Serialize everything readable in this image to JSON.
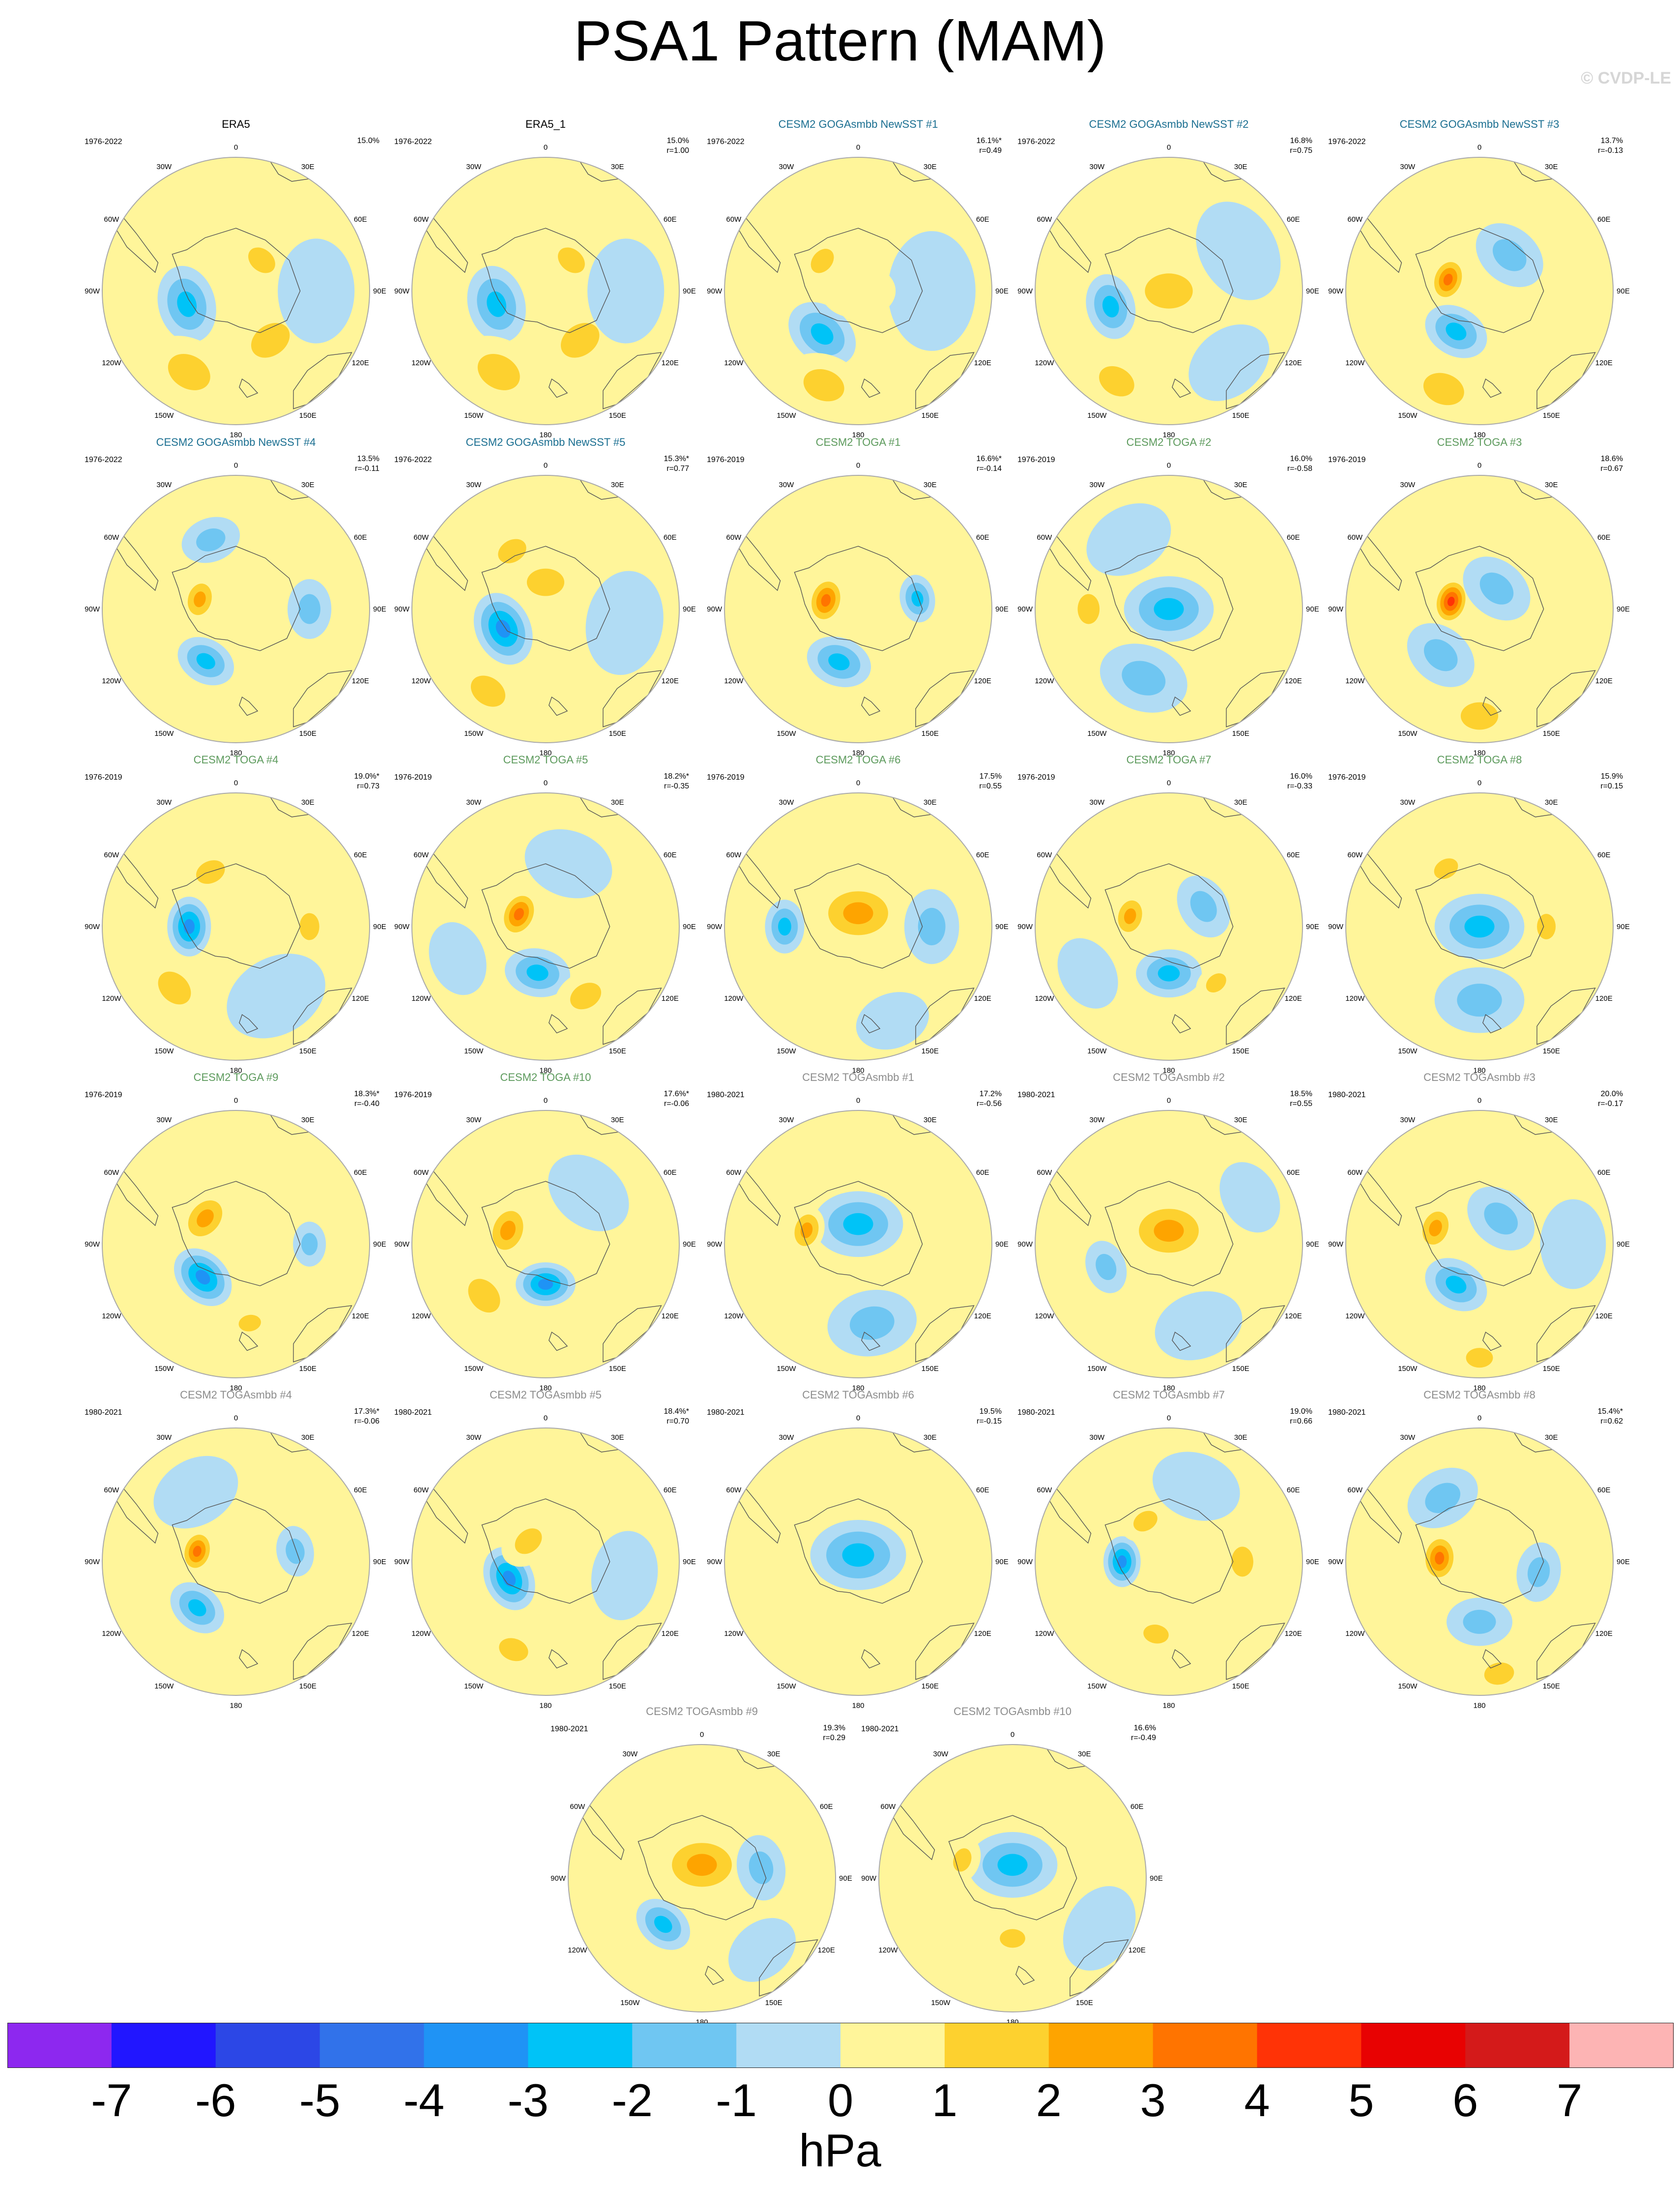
{
  "title": "PSA1 Pattern (MAM)",
  "credit": "© CVDP-LE",
  "meridian_labels": [
    "0",
    "30E",
    "60E",
    "90E",
    "120E",
    "150E",
    "180",
    "150W",
    "120W",
    "90W",
    "60W",
    "30W"
  ],
  "colors": {
    "title_obs": "#000000",
    "title_goga": "#1b6f91",
    "title_toga": "#5c9a5c",
    "title_togasmbb": "#8c8c8c",
    "coast": "#555555",
    "rim": "#aaaaaa"
  },
  "palette": [
    "#8d28ef",
    "#2116ff",
    "#2c47e6",
    "#3172ea",
    "#1f93f5",
    "#00c3f7",
    "#6fc6f2",
    "#b1dcf4",
    "#fff59a",
    "#fdd12f",
    "#fea400",
    "#ff7400",
    "#ff3306",
    "#e80202",
    "#d41a1a",
    "#fdb4b4"
  ],
  "colorbar": {
    "ticks": [
      "-7",
      "-6",
      "-5",
      "-4",
      "-3",
      "-2",
      "-1",
      "0",
      "1",
      "2",
      "3",
      "4",
      "5",
      "6",
      "7"
    ],
    "unit": "hPa"
  },
  "panels": [
    {
      "title": "ERA5",
      "group": "obs",
      "years": "1976-2022",
      "pct": "15.0%",
      "corr": "",
      "features": [
        {
          "lon": 255,
          "r": 0.38,
          "v": -3,
          "s": 0.26
        },
        {
          "lon": 145,
          "r": 0.45,
          "v": 1.5,
          "s": 0.28
        },
        {
          "lon": 40,
          "r": 0.3,
          "v": 1.2,
          "s": 0.2
        },
        {
          "lon": 210,
          "r": 0.7,
          "v": 1.3,
          "s": 0.3
        },
        {
          "lon": 90,
          "r": 0.6,
          "v": -0.9,
          "s": 0.35
        }
      ]
    },
    {
      "title": "ERA5_1",
      "group": "obs",
      "years": "1976-2022",
      "pct": "15.0%",
      "corr": "r=1.00",
      "features": [
        {
          "lon": 255,
          "r": 0.38,
          "v": -3,
          "s": 0.26
        },
        {
          "lon": 145,
          "r": 0.45,
          "v": 1.5,
          "s": 0.28
        },
        {
          "lon": 40,
          "r": 0.3,
          "v": 1.2,
          "s": 0.2
        },
        {
          "lon": 210,
          "r": 0.7,
          "v": 1.3,
          "s": 0.3
        },
        {
          "lon": 90,
          "r": 0.6,
          "v": -0.9,
          "s": 0.35
        }
      ]
    },
    {
      "title": "CESM2 GOGAsmbb NewSST #1",
      "group": "goga",
      "years": "1976-2022",
      "pct": "16.1%*",
      "corr": "r=0.49",
      "features": [
        {
          "lon": 220,
          "r": 0.42,
          "v": -3,
          "s": 0.25
        },
        {
          "lon": 310,
          "r": 0.35,
          "v": 1.8,
          "s": 0.18
        },
        {
          "lon": 200,
          "r": 0.75,
          "v": 1.4,
          "s": 0.28
        },
        {
          "lon": 90,
          "r": 0.55,
          "v": -0.9,
          "s": 0.4
        },
        {
          "lon": 0,
          "r": 0,
          "v": 0.4,
          "s": 0.25
        }
      ]
    },
    {
      "title": "CESM2 GOGAsmbb NewSST #2",
      "group": "goga",
      "years": "1976-2022",
      "pct": "16.8%",
      "corr": "r=0.75",
      "features": [
        {
          "lon": 0,
          "r": 0,
          "v": 1.9,
          "s": 0.32
        },
        {
          "lon": 255,
          "r": 0.45,
          "v": -2.5,
          "s": 0.22
        },
        {
          "lon": 210,
          "r": 0.78,
          "v": 1.2,
          "s": 0.25
        },
        {
          "lon": 60,
          "r": 0.6,
          "v": -0.9,
          "s": 0.35
        },
        {
          "lon": 140,
          "r": 0.7,
          "v": -0.8,
          "s": 0.3
        }
      ]
    },
    {
      "title": "CESM2 GOGAsmbb NewSST #3",
      "group": "goga",
      "years": "1976-2022",
      "pct": "13.7%",
      "corr": "r=-0.13",
      "features": [
        {
          "lon": 290,
          "r": 0.25,
          "v": 3.3,
          "s": 0.16
        },
        {
          "lon": 210,
          "r": 0.35,
          "v": -2.5,
          "s": 0.22
        },
        {
          "lon": 40,
          "r": 0.35,
          "v": -1.2,
          "s": 0.25
        },
        {
          "lon": 200,
          "r": 0.78,
          "v": 1.3,
          "s": 0.28
        },
        {
          "lon": 90,
          "r": 0.75,
          "v": 1,
          "s": 0.3
        }
      ]
    },
    {
      "title": "CESM2 GOGAsmbb NewSST #4",
      "group": "goga",
      "years": "1976-2022",
      "pct": "13.5%",
      "corr": "r=-0.11",
      "features": [
        {
          "lon": 285,
          "r": 0.28,
          "v": 2.5,
          "s": 0.16
        },
        {
          "lon": 210,
          "r": 0.45,
          "v": -2.3,
          "s": 0.2
        },
        {
          "lon": 90,
          "r": 0.55,
          "v": -1.5,
          "s": 0.2
        },
        {
          "lon": 340,
          "r": 0.55,
          "v": -1.3,
          "s": 0.2
        },
        {
          "lon": 170,
          "r": 0.75,
          "v": 1,
          "s": 0.25
        }
      ]
    },
    {
      "title": "CESM2 GOGAsmbb NewSST #5",
      "group": "goga",
      "years": "1976-2022",
      "pct": "15.3%*",
      "corr": "r=0.77",
      "features": [
        {
          "lon": 245,
          "r": 0.35,
          "v": -3.2,
          "s": 0.25
        },
        {
          "lon": 0,
          "r": 0.2,
          "v": 1.4,
          "s": 0.25
        },
        {
          "lon": 215,
          "r": 0.75,
          "v": 1.4,
          "s": 0.25
        },
        {
          "lon": 100,
          "r": 0.6,
          "v": -0.9,
          "s": 0.35
        },
        {
          "lon": 330,
          "r": 0.5,
          "v": 1.1,
          "s": 0.2
        }
      ]
    },
    {
      "title": "CESM2 TOGA #1",
      "group": "toga",
      "years": "1976-2019",
      "pct": "16.6%*",
      "corr": "r=-0.14",
      "features": [
        {
          "lon": 285,
          "r": 0.25,
          "v": 3.4,
          "s": 0.17
        },
        {
          "lon": 200,
          "r": 0.42,
          "v": -3,
          "s": 0.22
        },
        {
          "lon": 80,
          "r": 0.45,
          "v": -2.6,
          "s": 0.16
        },
        {
          "lon": 140,
          "r": 0.7,
          "v": 1,
          "s": 0.3
        },
        {
          "lon": 0,
          "r": 0.5,
          "v": 0.8,
          "s": 0.3
        }
      ]
    },
    {
      "title": "CESM2 TOGA #2",
      "group": "toga",
      "years": "1976-2019",
      "pct": "16.0%",
      "corr": "r=-0.58",
      "features": [
        {
          "lon": 0,
          "r": 0,
          "v": -2.5,
          "s": 0.3
        },
        {
          "lon": 200,
          "r": 0.55,
          "v": -1.5,
          "s": 0.3
        },
        {
          "lon": 270,
          "r": 0.6,
          "v": 1.1,
          "s": 0.2
        },
        {
          "lon": 100,
          "r": 0.85,
          "v": 1,
          "s": 0.3
        },
        {
          "lon": 330,
          "r": 0.6,
          "v": -0.9,
          "s": 0.3
        }
      ]
    },
    {
      "title": "CESM2 TOGA #3",
      "group": "toga",
      "years": "1976-2019",
      "pct": "18.6%",
      "corr": "r=0.67",
      "features": [
        {
          "lon": 285,
          "r": 0.22,
          "v": 4.5,
          "s": 0.16
        },
        {
          "lon": 40,
          "r": 0.2,
          "v": -1.8,
          "s": 0.25
        },
        {
          "lon": 220,
          "r": 0.45,
          "v": -2,
          "s": 0.25
        },
        {
          "lon": 180,
          "r": 0.8,
          "v": 1.1,
          "s": 0.25
        },
        {
          "lon": 100,
          "r": 0.7,
          "v": 1,
          "s": 0.25
        }
      ]
    },
    {
      "title": "CESM2 TOGA #4",
      "group": "toga",
      "years": "1976-2019",
      "pct": "19.0%*",
      "corr": "r=0.73",
      "features": [
        {
          "lon": 270,
          "r": 0.35,
          "v": -4,
          "s": 0.2
        },
        {
          "lon": 335,
          "r": 0.45,
          "v": 1.5,
          "s": 0.2
        },
        {
          "lon": 225,
          "r": 0.65,
          "v": 1.6,
          "s": 0.25
        },
        {
          "lon": 90,
          "r": 0.55,
          "v": 1.2,
          "s": 0.18
        },
        {
          "lon": 150,
          "r": 0.6,
          "v": -0.9,
          "s": 0.35
        }
      ]
    },
    {
      "title": "CESM2 TOGA #5",
      "group": "toga",
      "years": "1976-2019",
      "pct": "18.2%*",
      "corr": "r=-0.35",
      "features": [
        {
          "lon": 295,
          "r": 0.22,
          "v": 3.5,
          "s": 0.17
        },
        {
          "lon": 190,
          "r": 0.35,
          "v": -2.8,
          "s": 0.22
        },
        {
          "lon": 150,
          "r": 0.6,
          "v": 1.4,
          "s": 0.22
        },
        {
          "lon": 20,
          "r": 0.5,
          "v": -0.9,
          "s": 0.3
        },
        {
          "lon": 250,
          "r": 0.7,
          "v": -0.8,
          "s": 0.25
        }
      ]
    },
    {
      "title": "CESM2 TOGA #6",
      "group": "toga",
      "years": "1976-2019",
      "pct": "17.5%",
      "corr": "r=0.55",
      "features": [
        {
          "lon": 0,
          "r": 0.1,
          "v": 2.6,
          "s": 0.3
        },
        {
          "lon": 270,
          "r": 0.55,
          "v": -2.2,
          "s": 0.18
        },
        {
          "lon": 90,
          "r": 0.55,
          "v": -1.3,
          "s": 0.25
        },
        {
          "lon": 160,
          "r": 0.75,
          "v": -1,
          "s": 0.25
        }
      ]
    },
    {
      "title": "CESM2 TOGA #7",
      "group": "toga",
      "years": "1976-2019",
      "pct": "16.0%",
      "corr": "r=-0.33",
      "features": [
        {
          "lon": 285,
          "r": 0.3,
          "v": 3,
          "s": 0.16
        },
        {
          "lon": 180,
          "r": 0.35,
          "v": -2.4,
          "s": 0.22
        },
        {
          "lon": 60,
          "r": 0.3,
          "v": -1.7,
          "s": 0.22
        },
        {
          "lon": 140,
          "r": 0.55,
          "v": 1.3,
          "s": 0.15
        },
        {
          "lon": 240,
          "r": 0.7,
          "v": -0.9,
          "s": 0.25
        }
      ]
    },
    {
      "title": "CESM2 TOGA #8",
      "group": "toga",
      "years": "1976-2019",
      "pct": "15.9%",
      "corr": "r=0.15",
      "features": [
        {
          "lon": 0,
          "r": 0,
          "v": -2.6,
          "s": 0.3
        },
        {
          "lon": 90,
          "r": 0.5,
          "v": 1.5,
          "s": 0.17
        },
        {
          "lon": 330,
          "r": 0.5,
          "v": 1.4,
          "s": 0.17
        },
        {
          "lon": 180,
          "r": 0.55,
          "v": -1.2,
          "s": 0.3
        },
        {
          "lon": 240,
          "r": 0.7,
          "v": 1,
          "s": 0.25
        }
      ]
    },
    {
      "title": "CESM2 TOGA #9",
      "group": "toga",
      "years": "1976-2019",
      "pct": "18.3%*",
      "corr": "r=-0.40",
      "features": [
        {
          "lon": 225,
          "r": 0.35,
          "v": -3.5,
          "s": 0.22
        },
        {
          "lon": 310,
          "r": 0.3,
          "v": 2.3,
          "s": 0.2
        },
        {
          "lon": 90,
          "r": 0.55,
          "v": -2,
          "s": 0.15
        },
        {
          "lon": 170,
          "r": 0.6,
          "v": 1.6,
          "s": 0.15
        },
        {
          "lon": 20,
          "r": 0.5,
          "v": 0.8,
          "s": 0.25
        }
      ]
    },
    {
      "title": "CESM2 TOGA #10",
      "group": "toga",
      "years": "1976-2019",
      "pct": "17.6%*",
      "corr": "r=-0.06",
      "features": [
        {
          "lon": 180,
          "r": 0.3,
          "v": -3.3,
          "s": 0.2
        },
        {
          "lon": 290,
          "r": 0.3,
          "v": 2.5,
          "s": 0.2
        },
        {
          "lon": 230,
          "r": 0.6,
          "v": 1.3,
          "s": 0.25
        },
        {
          "lon": 40,
          "r": 0.5,
          "v": -1,
          "s": 0.3
        },
        {
          "lon": 110,
          "r": 0.7,
          "v": 1,
          "s": 0.25
        }
      ]
    },
    {
      "title": "CESM2 TOGAsmbb #1",
      "group": "togasmbb",
      "years": "1980-2021",
      "pct": "17.2%",
      "corr": "r=-0.56",
      "features": [
        {
          "lon": 0,
          "r": 0.15,
          "v": -2.2,
          "s": 0.3
        },
        {
          "lon": 285,
          "r": 0.4,
          "v": 2.4,
          "s": 0.16
        },
        {
          "lon": 170,
          "r": 0.6,
          "v": -1.3,
          "s": 0.3
        },
        {
          "lon": 90,
          "r": 0.8,
          "v": 0.9,
          "s": 0.3
        }
      ]
    },
    {
      "title": "CESM2 TOGAsmbb #2",
      "group": "togasmbb",
      "years": "1980-2021",
      "pct": "18.5%",
      "corr": "r=0.55",
      "features": [
        {
          "lon": 0,
          "r": 0.1,
          "v": 2.4,
          "s": 0.3
        },
        {
          "lon": 250,
          "r": 0.5,
          "v": -1.8,
          "s": 0.18
        },
        {
          "lon": 160,
          "r": 0.65,
          "v": -1,
          "s": 0.3
        },
        {
          "lon": 60,
          "r": 0.7,
          "v": -0.9,
          "s": 0.25
        },
        {
          "lon": 220,
          "r": 0.8,
          "v": 1,
          "s": 0.2
        }
      ]
    },
    {
      "title": "CESM2 TOGAsmbb #3",
      "group": "togasmbb",
      "years": "1980-2021",
      "pct": "20.0%",
      "corr": "r=-0.17",
      "features": [
        {
          "lon": 210,
          "r": 0.35,
          "v": -3,
          "s": 0.22
        },
        {
          "lon": 290,
          "r": 0.35,
          "v": 2.5,
          "s": 0.17
        },
        {
          "lon": 40,
          "r": 0.25,
          "v": -1.2,
          "s": 0.25
        },
        {
          "lon": 180,
          "r": 0.85,
          "v": 1.3,
          "s": 0.18
        },
        {
          "lon": 90,
          "r": 0.7,
          "v": -0.9,
          "s": 0.3
        }
      ]
    },
    {
      "title": "CESM2 TOGAsmbb #4",
      "group": "togasmbb",
      "years": "1980-2021",
      "pct": "17.3%*",
      "corr": "r=-0.06",
      "features": [
        {
          "lon": 285,
          "r": 0.3,
          "v": 3.3,
          "s": 0.15
        },
        {
          "lon": 220,
          "r": 0.45,
          "v": -3,
          "s": 0.2
        },
        {
          "lon": 80,
          "r": 0.45,
          "v": -1.8,
          "s": 0.17
        },
        {
          "lon": 150,
          "r": 0.7,
          "v": 1,
          "s": 0.25
        },
        {
          "lon": 330,
          "r": 0.6,
          "v": -0.9,
          "s": 0.3
        }
      ]
    },
    {
      "title": "CESM2 TOGAsmbb #5",
      "group": "togasmbb",
      "years": "1980-2021",
      "pct": "18.4%*",
      "corr": "r=0.70",
      "features": [
        {
          "lon": 245,
          "r": 0.3,
          "v": -3.3,
          "s": 0.22
        },
        {
          "lon": 320,
          "r": 0.2,
          "v": 1.8,
          "s": 0.2
        },
        {
          "lon": 200,
          "r": 0.7,
          "v": 1.5,
          "s": 0.2
        },
        {
          "lon": 100,
          "r": 0.6,
          "v": -0.9,
          "s": 0.3
        },
        {
          "lon": 20,
          "r": 0.55,
          "v": 1,
          "s": 0.25
        }
      ]
    },
    {
      "title": "CESM2 TOGAsmbb #6",
      "group": "togasmbb",
      "years": "1980-2021",
      "pct": "19.5%",
      "corr": "r=-0.15",
      "features": [
        {
          "lon": 0,
          "r": 0.05,
          "v": -2.6,
          "s": 0.32
        },
        {
          "lon": 330,
          "r": 0.8,
          "v": 1,
          "s": 0.3
        },
        {
          "lon": 180,
          "r": 0.85,
          "v": 1,
          "s": 0.3
        },
        {
          "lon": 90,
          "r": 0.6,
          "v": 0.6,
          "s": 0.25
        }
      ]
    },
    {
      "title": "CESM2 TOGAsmbb #7",
      "group": "togasmbb",
      "years": "1980-2021",
      "pct": "19.0%",
      "corr": "r=0.66",
      "features": [
        {
          "lon": 270,
          "r": 0.35,
          "v": -3.6,
          "s": 0.17
        },
        {
          "lon": 330,
          "r": 0.35,
          "v": 1.6,
          "s": 0.17
        },
        {
          "lon": 190,
          "r": 0.55,
          "v": 1.7,
          "s": 0.17
        },
        {
          "lon": 90,
          "r": 0.55,
          "v": 1.3,
          "s": 0.2
        },
        {
          "lon": 20,
          "r": 0.6,
          "v": -0.9,
          "s": 0.3
        }
      ]
    },
    {
      "title": "CESM2 TOGAsmbb #8",
      "group": "togasmbb",
      "years": "1980-2021",
      "pct": "15.4%*",
      "corr": "r=0.62",
      "features": [
        {
          "lon": 275,
          "r": 0.3,
          "v": 3.6,
          "s": 0.17
        },
        {
          "lon": 180,
          "r": 0.45,
          "v": -2,
          "s": 0.22
        },
        {
          "lon": 100,
          "r": 0.45,
          "v": -1.2,
          "s": 0.2
        },
        {
          "lon": 330,
          "r": 0.55,
          "v": -1.2,
          "s": 0.25
        },
        {
          "lon": 170,
          "r": 0.85,
          "v": 1.2,
          "s": 0.2
        }
      ]
    },
    {
      "title": "CESM2 TOGAsmbb #9",
      "group": "togasmbb",
      "years": "1980-2021",
      "pct": "19.3%",
      "corr": "r=0.29",
      "features": [
        {
          "lon": 0,
          "r": 0.1,
          "v": 2.4,
          "s": 0.3
        },
        {
          "lon": 220,
          "r": 0.45,
          "v": -3,
          "s": 0.2
        },
        {
          "lon": 80,
          "r": 0.45,
          "v": -1.6,
          "s": 0.22
        },
        {
          "lon": 140,
          "r": 0.7,
          "v": -0.9,
          "s": 0.25
        }
      ]
    },
    {
      "title": "CESM2 TOGAsmbb #10",
      "group": "togasmbb",
      "years": "1980-2021",
      "pct": "16.6%",
      "corr": "r=-0.49",
      "features": [
        {
          "lon": 0,
          "r": 0.1,
          "v": -2.5,
          "s": 0.3
        },
        {
          "lon": 290,
          "r": 0.4,
          "v": 1.5,
          "s": 0.16
        },
        {
          "lon": 180,
          "r": 0.45,
          "v": 1.4,
          "s": 0.17
        },
        {
          "lon": 120,
          "r": 0.75,
          "v": -0.9,
          "s": 0.3
        }
      ]
    }
  ]
}
